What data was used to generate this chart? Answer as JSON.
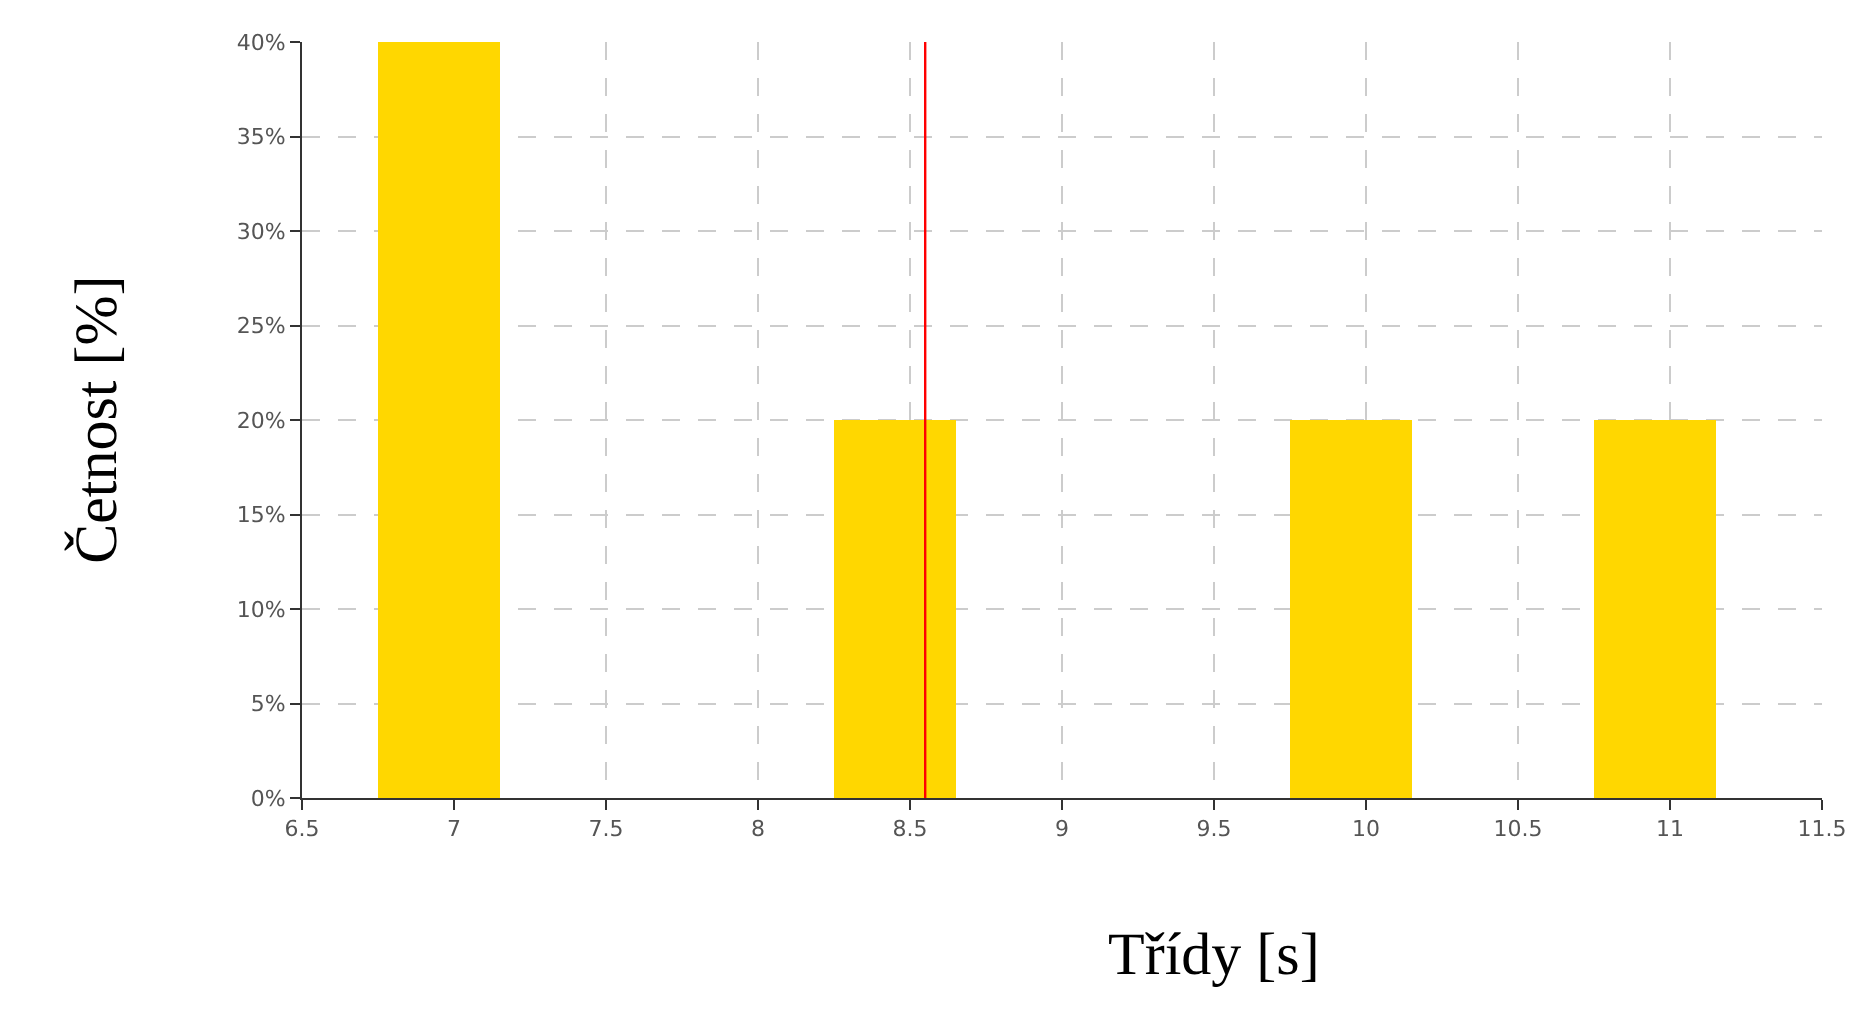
{
  "chart_data": {
    "type": "bar",
    "xlabel": "Třídy [s]",
    "ylabel": "Četnost [%]",
    "x": [
      6.95,
      8.45,
      9.95,
      10.95
    ],
    "values": [
      40,
      20,
      20,
      20
    ],
    "color": "#ffd700",
    "xlim": [
      6.5,
      11.5
    ],
    "xticks": [
      6.5,
      7,
      7.5,
      8,
      8.5,
      9,
      9.5,
      10,
      10.5,
      11,
      11.5
    ],
    "ylim": [
      0,
      40
    ],
    "yticks": [
      {
        "value": 0,
        "label": "0%"
      },
      {
        "value": 5,
        "label": "5%"
      },
      {
        "value": 10,
        "label": "10%"
      },
      {
        "value": 15,
        "label": "15%"
      },
      {
        "value": 20,
        "label": "20%"
      },
      {
        "value": 25,
        "label": "25%"
      },
      {
        "value": 30,
        "label": "30%"
      },
      {
        "value": 35,
        "label": "35%"
      },
      {
        "value": 40,
        "label": "40%"
      }
    ],
    "ref_lines": [
      {
        "axis": "x",
        "value": 8.55,
        "color": "#ff0000"
      }
    ],
    "grid": true
  }
}
